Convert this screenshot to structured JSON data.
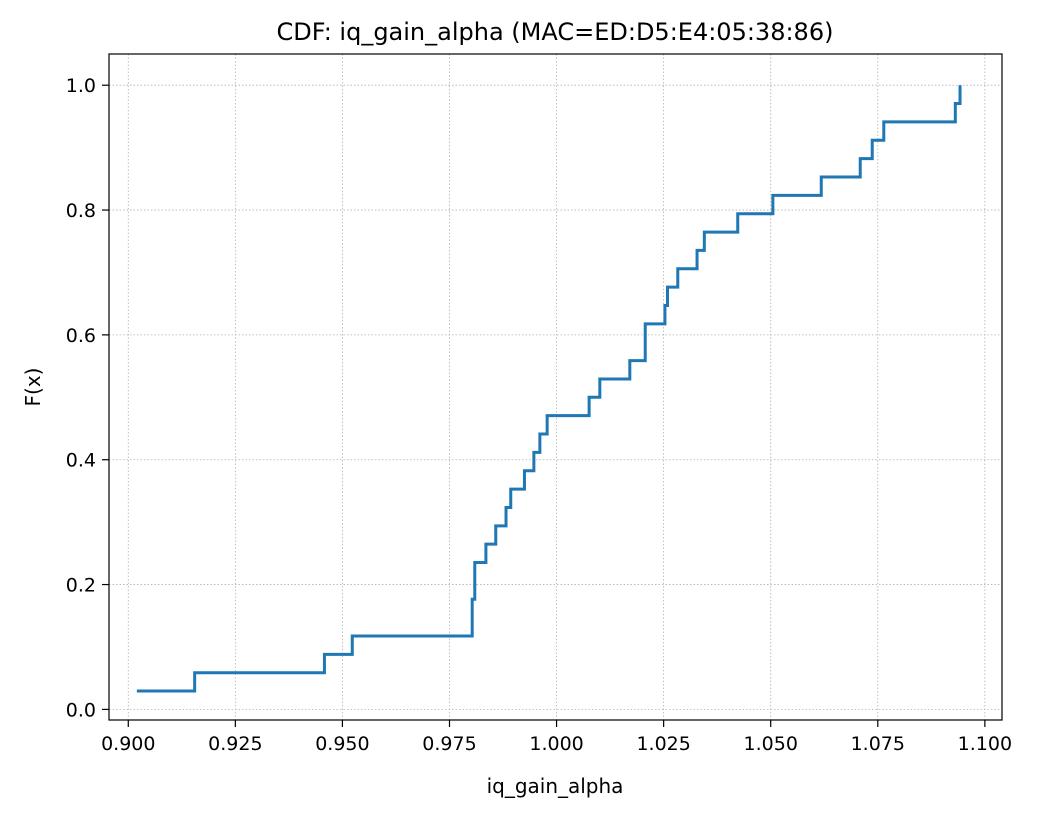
{
  "chart_data": {
    "type": "line",
    "step": true,
    "title": "CDF: iq_gain_alpha (MAC=ED:D5:E4:05:38:86)",
    "xlabel": "iq_gain_alpha",
    "ylabel": "F(x)",
    "xlim": [
      0.8955,
      1.104
    ],
    "ylim": [
      -0.017,
      1.05
    ],
    "xticks": [
      0.9,
      0.925,
      0.95,
      0.975,
      1.0,
      1.025,
      1.05,
      1.075,
      1.1
    ],
    "xtick_labels": [
      "0.900",
      "0.925",
      "0.950",
      "0.975",
      "1.000",
      "1.025",
      "1.050",
      "1.075",
      "1.100"
    ],
    "yticks": [
      0.0,
      0.2,
      0.4,
      0.6,
      0.8,
      1.0
    ],
    "ytick_labels": [
      "0.0",
      "0.2",
      "0.4",
      "0.6",
      "0.8",
      "1.0"
    ],
    "grid": true,
    "line_color": "#1f77b4",
    "series": [
      {
        "x": [
          0.902,
          0.9155,
          0.9458,
          0.9523,
          0.9803,
          0.9809,
          0.9835,
          0.9858,
          0.9882,
          0.9893,
          0.9925,
          0.9947,
          0.9961,
          0.9978,
          1.0076,
          1.0101,
          1.0171,
          1.0207,
          1.0253,
          1.0259,
          1.0283,
          1.0328,
          1.0345,
          1.0423,
          1.0505,
          1.0618,
          1.0709,
          1.0737,
          1.0764,
          1.0931,
          1.0942
        ],
        "y": [
          0.0294,
          0.0588,
          0.0882,
          0.1176,
          0.1765,
          0.2353,
          0.2647,
          0.2941,
          0.3235,
          0.3529,
          0.3824,
          0.4118,
          0.4412,
          0.4706,
          0.5,
          0.5294,
          0.5588,
          0.6176,
          0.6471,
          0.6765,
          0.7059,
          0.7353,
          0.7647,
          0.7941,
          0.8235,
          0.8529,
          0.8824,
          0.9118,
          0.9412,
          0.9706,
          1.0
        ]
      }
    ]
  }
}
